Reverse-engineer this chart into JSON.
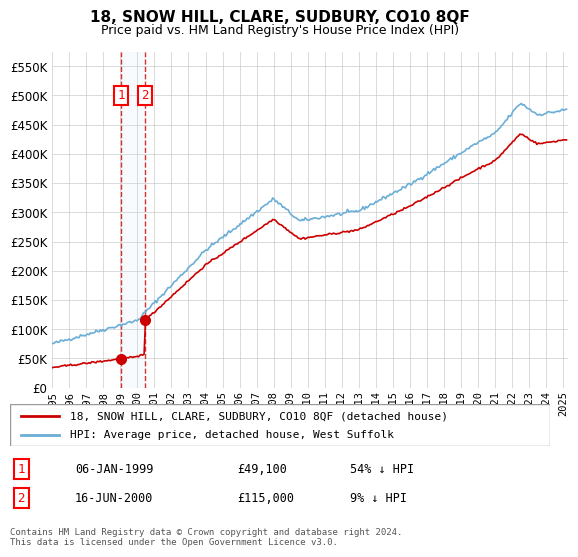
{
  "title": "18, SNOW HILL, CLARE, SUDBURY, CO10 8QF",
  "subtitle": "Price paid vs. HM Land Registry's House Price Index (HPI)",
  "legend_line1": "18, SNOW HILL, CLARE, SUDBURY, CO10 8QF (detached house)",
  "legend_line2": "HPI: Average price, detached house, West Suffolk",
  "transaction1_label": "1",
  "transaction1_date": "06-JAN-1999",
  "transaction1_price": 49100,
  "transaction1_text": "06-JAN-1999          £49,100          54% ↓ HPI",
  "transaction2_label": "2",
  "transaction2_date": "16-JUN-2000",
  "transaction2_price": 115000,
  "transaction2_text": "16-JUN-2000          £115,000          9% ↓ HPI",
  "footnote": "Contains HM Land Registry data © Crown copyright and database right 2024.\nThis data is licensed under the Open Government Licence v3.0.",
  "hpi_color": "#6baed6",
  "price_color": "#cc0000",
  "marker_color": "#cc0000",
  "transaction1_x": 1999.03,
  "transaction2_x": 2000.46,
  "ylim": [
    0,
    575000
  ],
  "xlim_start": 1995.0,
  "xlim_end": 2025.3
}
